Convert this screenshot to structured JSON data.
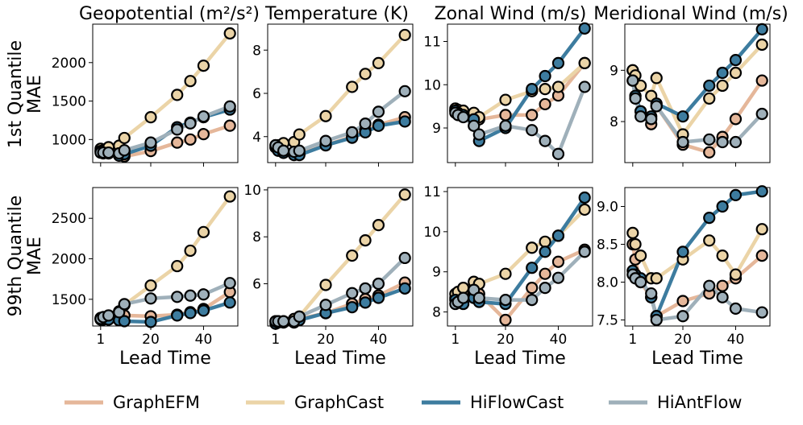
{
  "figure": {
    "column_titles": [
      "Geopotential (m²/s²)",
      "Temperature (K)",
      "Zonal Wind (m/s)",
      "Meridional Wind (m/s)"
    ],
    "row_labels": [
      [
        "1st Quantile",
        "MAE"
      ],
      [
        "99th Quantile",
        "MAE"
      ]
    ],
    "xlabel": "Lead Time",
    "x_ticks": [
      1,
      20,
      40
    ]
  },
  "legend": {
    "position": "bottom",
    "items": [
      {
        "name": "GraphEFM",
        "color": "#e5b79a"
      },
      {
        "name": "GraphCast",
        "color": "#ebd4a7"
      },
      {
        "name": "HiFlowCast",
        "color": "#3d7c9f"
      },
      {
        "name": "HiAntFlow",
        "color": "#9fb0ba"
      }
    ]
  },
  "chart_data": [
    {
      "type": "line",
      "row": 0,
      "col": 0,
      "title": "Geopotential (m²/s²)",
      "ylabel": "1st Quantile MAE",
      "xlabel": "",
      "x": [
        1,
        2,
        4,
        8,
        10,
        20,
        30,
        35,
        40,
        50
      ],
      "xlim": [
        -2,
        53
      ],
      "ylim": [
        700,
        2500
      ],
      "yticks": [
        1000,
        1500,
        2000
      ],
      "series": [
        {
          "name": "GraphEFM",
          "color": "#e5b79a",
          "values": [
            850,
            830,
            820,
            800,
            780,
            850,
            960,
            1000,
            1070,
            1180
          ]
        },
        {
          "name": "GraphCast",
          "color": "#ebd4a7",
          "values": [
            880,
            860,
            900,
            920,
            1020,
            1290,
            1580,
            1760,
            1960,
            2380
          ]
        },
        {
          "name": "HiFlowCast",
          "color": "#3d7c9f",
          "values": [
            850,
            820,
            820,
            790,
            810,
            920,
            1160,
            1220,
            1290,
            1390
          ]
        },
        {
          "name": "HiAntFlow",
          "color": "#9fb0ba",
          "values": [
            830,
            830,
            830,
            820,
            860,
            960,
            1130,
            1210,
            1300,
            1430
          ]
        }
      ]
    },
    {
      "type": "line",
      "row": 0,
      "col": 1,
      "title": "Temperature (K)",
      "ylabel": "",
      "xlabel": "",
      "x": [
        1,
        2,
        4,
        8,
        10,
        20,
        30,
        35,
        40,
        50
      ],
      "xlim": [
        -2,
        53
      ],
      "ylim": [
        2.8,
        9.2
      ],
      "yticks": [
        4,
        6,
        8
      ],
      "series": [
        {
          "name": "GraphEFM",
          "color": "#e5b79a",
          "values": [
            3.5,
            3.4,
            3.3,
            3.2,
            3.2,
            3.6,
            4.0,
            4.3,
            4.55,
            4.9
          ]
        },
        {
          "name": "GraphCast",
          "color": "#ebd4a7",
          "values": [
            3.6,
            3.6,
            3.7,
            3.75,
            4.1,
            4.95,
            6.3,
            6.9,
            7.4,
            8.7
          ]
        },
        {
          "name": "HiFlowCast",
          "color": "#3d7c9f",
          "values": [
            3.5,
            3.35,
            3.25,
            3.15,
            3.15,
            3.6,
            3.95,
            4.2,
            4.5,
            4.7
          ]
        },
        {
          "name": "HiAntFlow",
          "color": "#9fb0ba",
          "values": [
            3.6,
            3.5,
            3.35,
            3.3,
            3.35,
            3.8,
            4.2,
            4.6,
            5.15,
            6.1
          ]
        }
      ]
    },
    {
      "type": "line",
      "row": 0,
      "col": 2,
      "title": "Zonal Wind (m/s)",
      "ylabel": "",
      "xlabel": "",
      "x": [
        1,
        2,
        4,
        8,
        10,
        20,
        30,
        35,
        40,
        50
      ],
      "xlim": [
        -2,
        53
      ],
      "ylim": [
        8.2,
        11.4
      ],
      "yticks": [
        9,
        10,
        11
      ],
      "series": [
        {
          "name": "GraphEFM",
          "color": "#e5b79a",
          "values": [
            9.4,
            9.38,
            9.36,
            9.3,
            9.2,
            9.3,
            9.3,
            9.55,
            9.75,
            10.5
          ]
        },
        {
          "name": "GraphCast",
          "color": "#ebd4a7",
          "values": [
            9.45,
            9.42,
            9.4,
            9.35,
            9.25,
            9.65,
            9.85,
            9.9,
            9.95,
            10.5
          ]
        },
        {
          "name": "HiFlowCast",
          "color": "#3d7c9f",
          "values": [
            9.4,
            9.35,
            9.3,
            9.2,
            8.7,
            9.0,
            9.9,
            10.2,
            10.5,
            11.3
          ]
        },
        {
          "name": "HiAntFlow",
          "color": "#9fb0ba",
          "values": [
            9.35,
            9.3,
            9.25,
            9.05,
            8.85,
            9.05,
            8.95,
            8.7,
            8.4,
            9.95
          ]
        }
      ]
    },
    {
      "type": "line",
      "row": 0,
      "col": 3,
      "title": "Meridional Wind (m/s)",
      "ylabel": "",
      "xlabel": "",
      "x": [
        1,
        2,
        4,
        8,
        10,
        20,
        30,
        35,
        40,
        50
      ],
      "xlim": [
        -2,
        53
      ],
      "ylim": [
        7.2,
        9.9
      ],
      "yticks": [
        8,
        9
      ],
      "series": [
        {
          "name": "GraphEFM",
          "color": "#e5b79a",
          "values": [
            9.0,
            8.5,
            8.2,
            7.95,
            8.3,
            7.55,
            7.4,
            7.7,
            8.05,
            8.8
          ]
        },
        {
          "name": "GraphCast",
          "color": "#ebd4a7",
          "values": [
            9.0,
            8.9,
            8.7,
            8.5,
            8.85,
            7.75,
            8.45,
            8.7,
            8.95,
            9.5
          ]
        },
        {
          "name": "HiFlowCast",
          "color": "#3d7c9f",
          "values": [
            8.8,
            8.5,
            8.2,
            8.1,
            8.35,
            8.1,
            8.7,
            8.95,
            9.2,
            9.8
          ]
        },
        {
          "name": "HiAntFlow",
          "color": "#9fb0ba",
          "values": [
            8.8,
            8.45,
            8.1,
            8.05,
            8.3,
            7.6,
            7.65,
            7.6,
            7.6,
            8.15
          ]
        }
      ]
    },
    {
      "type": "line",
      "row": 1,
      "col": 0,
      "title": "",
      "ylabel": "99th Quantile MAE",
      "xlabel": "Lead Time",
      "x": [
        1,
        2,
        4,
        8,
        10,
        20,
        30,
        35,
        40,
        50
      ],
      "xlim": [
        -2,
        53
      ],
      "ylim": [
        1170,
        2880
      ],
      "yticks": [
        1500,
        2000,
        2500
      ],
      "series": [
        {
          "name": "GraphEFM",
          "color": "#e5b79a",
          "values": [
            1260,
            1270,
            1280,
            1290,
            1300,
            1290,
            1310,
            1340,
            1380,
            1590
          ]
        },
        {
          "name": "GraphCast",
          "color": "#ebd4a7",
          "values": [
            1270,
            1280,
            1300,
            1350,
            1430,
            1670,
            1910,
            2100,
            2330,
            2770
          ]
        },
        {
          "name": "HiFlowCast",
          "color": "#3d7c9f",
          "values": [
            1250,
            1250,
            1250,
            1240,
            1230,
            1220,
            1300,
            1330,
            1360,
            1460
          ]
        },
        {
          "name": "HiAntFlow",
          "color": "#9fb0ba",
          "values": [
            1260,
            1280,
            1300,
            1340,
            1440,
            1510,
            1530,
            1545,
            1560,
            1700
          ]
        }
      ]
    },
    {
      "type": "line",
      "row": 1,
      "col": 1,
      "title": "",
      "ylabel": "",
      "xlabel": "Lead Time",
      "x": [
        1,
        2,
        4,
        8,
        10,
        20,
        30,
        35,
        40,
        50
      ],
      "xlim": [
        -2,
        53
      ],
      "ylim": [
        4.2,
        10.1
      ],
      "yticks": [
        6,
        8,
        10
      ],
      "series": [
        {
          "name": "GraphEFM",
          "color": "#e5b79a",
          "values": [
            4.4,
            4.4,
            4.4,
            4.4,
            4.5,
            4.75,
            5.15,
            5.35,
            5.5,
            6.05
          ]
        },
        {
          "name": "GraphCast",
          "color": "#ebd4a7",
          "values": [
            4.4,
            4.4,
            4.4,
            4.5,
            4.6,
            5.95,
            7.2,
            7.85,
            8.5,
            9.8
          ]
        },
        {
          "name": "HiFlowCast",
          "color": "#3d7c9f",
          "values": [
            4.3,
            4.35,
            4.35,
            4.35,
            4.45,
            4.75,
            5.0,
            5.2,
            5.4,
            5.8
          ]
        },
        {
          "name": "HiAntFlow",
          "color": "#9fb0ba",
          "values": [
            4.4,
            4.4,
            4.4,
            4.4,
            4.6,
            5.1,
            5.6,
            5.8,
            6.0,
            7.1
          ]
        }
      ]
    },
    {
      "type": "line",
      "row": 1,
      "col": 2,
      "title": "",
      "ylabel": "",
      "xlabel": "Lead Time",
      "x": [
        1,
        2,
        4,
        8,
        10,
        20,
        30,
        35,
        40,
        50
      ],
      "xlim": [
        -2,
        53
      ],
      "ylim": [
        7.65,
        11.1
      ],
      "yticks": [
        8,
        9,
        10,
        11
      ],
      "series": [
        {
          "name": "GraphEFM",
          "color": "#e5b79a",
          "values": [
            8.35,
            8.4,
            8.45,
            8.5,
            8.45,
            7.8,
            8.6,
            8.95,
            9.25,
            9.55
          ]
        },
        {
          "name": "GraphCast",
          "color": "#ebd4a7",
          "values": [
            8.45,
            8.5,
            8.6,
            8.75,
            8.7,
            8.95,
            9.6,
            9.75,
            9.9,
            10.55
          ]
        },
        {
          "name": "HiFlowCast",
          "color": "#3d7c9f",
          "values": [
            8.3,
            8.25,
            8.2,
            8.35,
            8.25,
            8.2,
            9.1,
            9.5,
            9.9,
            10.85
          ]
        },
        {
          "name": "HiAntFlow",
          "color": "#9fb0ba",
          "values": [
            8.2,
            8.25,
            8.35,
            8.55,
            8.35,
            8.3,
            8.3,
            8.6,
            8.85,
            9.5
          ]
        }
      ]
    },
    {
      "type": "line",
      "row": 1,
      "col": 3,
      "title": "",
      "ylabel": "",
      "xlabel": "Lead Time",
      "x": [
        1,
        2,
        4,
        8,
        10,
        20,
        30,
        35,
        40,
        50
      ],
      "xlim": [
        -2,
        53
      ],
      "ylim": [
        7.42,
        9.25
      ],
      "yticks": [
        7.5,
        8.0,
        8.5,
        9.0
      ],
      "series": [
        {
          "name": "GraphEFM",
          "color": "#e5b79a",
          "values": [
            8.5,
            8.3,
            8.0,
            7.8,
            7.55,
            7.75,
            7.85,
            7.95,
            8.05,
            8.35
          ]
        },
        {
          "name": "GraphCast",
          "color": "#ebd4a7",
          "values": [
            8.65,
            8.5,
            8.35,
            8.05,
            8.05,
            8.3,
            8.55,
            8.35,
            8.1,
            8.7
          ]
        },
        {
          "name": "HiFlowCast",
          "color": "#3d7c9f",
          "values": [
            8.15,
            8.1,
            8.05,
            7.8,
            7.55,
            8.4,
            8.85,
            9.0,
            9.15,
            9.2
          ]
        },
        {
          "name": "HiAntFlow",
          "color": "#9fb0ba",
          "values": [
            8.1,
            8.05,
            8.0,
            7.85,
            7.5,
            7.55,
            7.95,
            7.8,
            7.65,
            7.6
          ]
        }
      ]
    }
  ]
}
